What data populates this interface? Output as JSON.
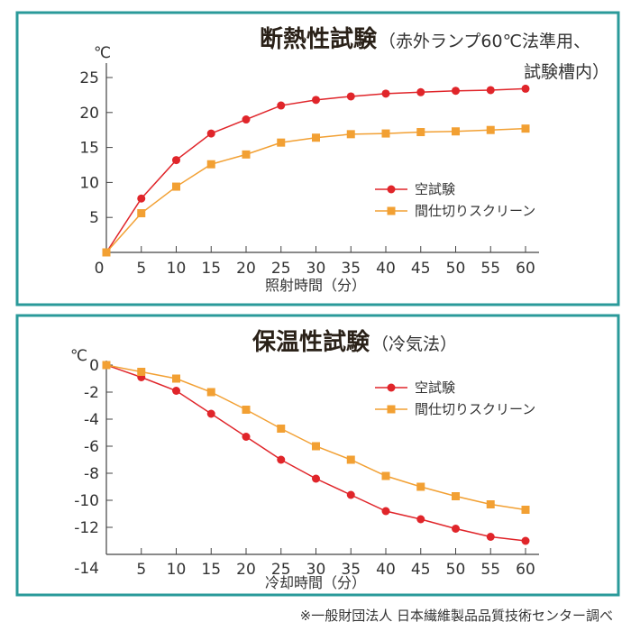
{
  "colors": {
    "blank": "#e0252a",
    "screen": "#f2a033",
    "border": "#2a9a9a"
  },
  "chart_data": [
    {
      "type": "line",
      "title": "断熱性試験",
      "subtitle_line1": "（赤外ランプ60℃法準用、",
      "subtitle_line2": "試験槽内）",
      "ylabel": "℃",
      "xlabel": "照射時間（分）",
      "x": [
        0,
        5,
        10,
        15,
        20,
        25,
        30,
        35,
        40,
        45,
        50,
        55,
        60
      ],
      "xticks": [
        "0",
        "5",
        "10",
        "15",
        "20",
        "25",
        "30",
        "35",
        "40",
        "45",
        "50",
        "55",
        "60"
      ],
      "yticks": [
        "5",
        "10",
        "15",
        "20",
        "25"
      ],
      "ytick_values": [
        5,
        10,
        15,
        20,
        25
      ],
      "xlim": [
        0,
        60
      ],
      "ylim": [
        0,
        25
      ],
      "legend_position": "right-middle",
      "series": [
        {
          "name": "空試験",
          "marker": "circle",
          "values": [
            0,
            7.7,
            13.2,
            17,
            19,
            21,
            21.8,
            22.3,
            22.7,
            22.9,
            23.1,
            23.2,
            23.4
          ]
        },
        {
          "name": "間仕切りスクリーン",
          "marker": "square",
          "values": [
            0,
            5.6,
            9.4,
            12.6,
            14,
            15.7,
            16.4,
            16.9,
            17,
            17.2,
            17.3,
            17.5,
            17.7
          ]
        }
      ]
    },
    {
      "type": "line",
      "title": "保温性試験",
      "subtitle_line1": "（冷気法）",
      "ylabel": "℃",
      "xlabel": "冷却時間（分）",
      "x": [
        0,
        5,
        10,
        15,
        20,
        25,
        30,
        35,
        40,
        45,
        50,
        55,
        60
      ],
      "xticks": [
        "5",
        "10",
        "15",
        "20",
        "25",
        "30",
        "35",
        "40",
        "45",
        "50",
        "55",
        "60"
      ],
      "yticks": [
        "0",
        "-2",
        "-4",
        "-6",
        "-8",
        "-10",
        "-12",
        "-14"
      ],
      "ytick_values": [
        0,
        -2,
        -4,
        -6,
        -8,
        -10,
        -12,
        -14
      ],
      "xlim": [
        0,
        60
      ],
      "ylim": [
        -14,
        0
      ],
      "legend_position": "top-right",
      "series": [
        {
          "name": "空試験",
          "marker": "circle",
          "values": [
            0,
            -0.9,
            -1.9,
            -3.6,
            -5.3,
            -7,
            -8.4,
            -9.6,
            -10.8,
            -11.4,
            -12.1,
            -12.7,
            -13
          ]
        },
        {
          "name": "間仕切りスクリーン",
          "marker": "square",
          "values": [
            0,
            -0.5,
            -1,
            -2,
            -3.3,
            -4.7,
            -6,
            -7,
            -8.2,
            -9,
            -9.7,
            -10.3,
            -10.7
          ]
        }
      ]
    }
  ],
  "footer": "※一般財団法人 日本繊維製品品質技術センター調べ"
}
